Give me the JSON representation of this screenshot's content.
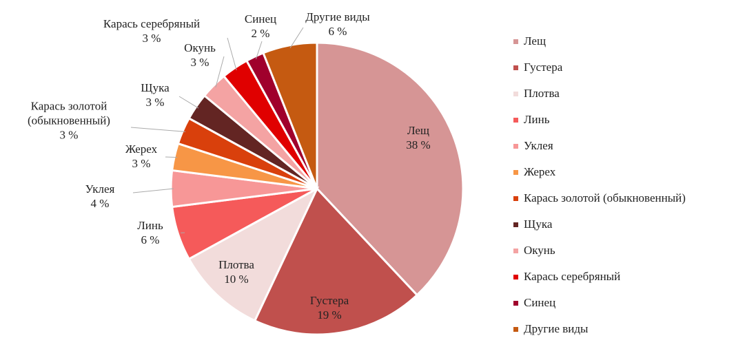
{
  "chart_data": {
    "type": "pie",
    "categories": [
      "Лещ",
      "Густера",
      "Плотва",
      "Линь",
      "Уклея",
      "Жерех",
      "Карась золотой (обыкновенный)",
      "Щука",
      "Окунь",
      "Карась серебряный",
      "Синец",
      "Другие виды"
    ],
    "values": [
      38,
      19,
      10,
      6,
      4,
      3,
      3,
      3,
      3,
      3,
      2,
      6
    ],
    "value_labels": [
      "38 %",
      "19 %",
      "10 %",
      "6 %",
      "4 %",
      "3 %",
      "3 %",
      "3 %",
      "3 %",
      "3 %",
      "2 %",
      "6 %"
    ],
    "colors": [
      "#d69595",
      "#c0504d",
      "#f2dcdb",
      "#f55a5a",
      "#f79797",
      "#f79646",
      "#d9400c",
      "#632523",
      "#f4a3a3",
      "#e00000",
      "#a0002c",
      "#c55a11"
    ],
    "legend": "right"
  }
}
